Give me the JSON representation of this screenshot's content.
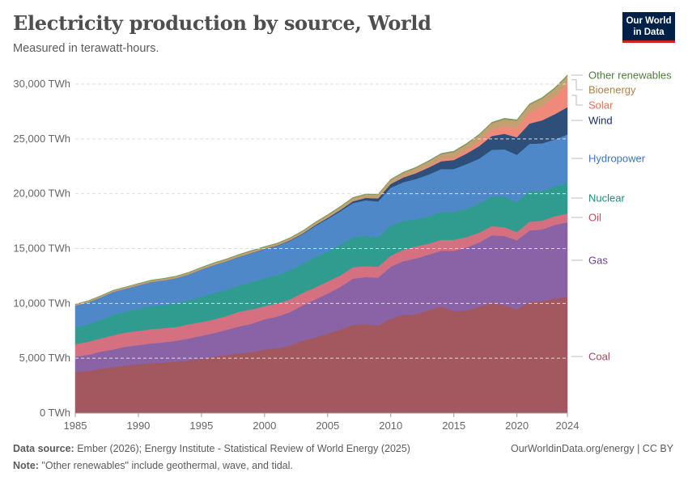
{
  "title": "Electricity production by source, World",
  "subtitle": "Measured in terawatt-hours.",
  "logo": {
    "line1": "Our World",
    "line2": "in Data"
  },
  "footer": {
    "source_label": "Data source:",
    "source": "Ember (2026); Energy Institute - Statistical Review of World Energy (2025)",
    "note_label": "Note:",
    "note": "\"Other renewables\" include geothermal, wave, and tidal.",
    "url": "OurWorldinData.org/energy | CC BY"
  },
  "chart_data": {
    "type": "area",
    "stacked": true,
    "title": "Electricity production by source, World",
    "ylabel": "",
    "xlabel": "",
    "xlim": [
      1985,
      2024
    ],
    "ylim": [
      0,
      30000
    ],
    "grid": "horizontal dashed",
    "legend": "right, inline labels",
    "x_ticks": [
      1985,
      1990,
      1995,
      2000,
      2005,
      2010,
      2015,
      2020,
      2024
    ],
    "y_ticks": [
      {
        "value": 0,
        "label": "0 TWh"
      },
      {
        "value": 5000,
        "label": "5,000 TWh"
      },
      {
        "value": 10000,
        "label": "10,000 TWh"
      },
      {
        "value": 15000,
        "label": "15,000 TWh"
      },
      {
        "value": 20000,
        "label": "20,000 TWh"
      },
      {
        "value": 25000,
        "label": "25,000 TWh"
      },
      {
        "value": 30000,
        "label": "30,000 TWh"
      }
    ],
    "years": [
      1985,
      1986,
      1987,
      1988,
      1989,
      1990,
      1991,
      1992,
      1993,
      1994,
      1995,
      1996,
      1997,
      1998,
      1999,
      2000,
      2001,
      2002,
      2003,
      2004,
      2005,
      2006,
      2007,
      2008,
      2009,
      2010,
      2011,
      2012,
      2013,
      2014,
      2015,
      2016,
      2017,
      2018,
      2019,
      2020,
      2021,
      2022,
      2023,
      2024
    ],
    "series": [
      {
        "name": "Coal",
        "color": "#a2585e",
        "label_color": "#a2485a",
        "values": [
          3750,
          3850,
          4050,
          4200,
          4350,
          4450,
          4550,
          4600,
          4700,
          4800,
          4950,
          5150,
          5300,
          5450,
          5550,
          5800,
          5900,
          6150,
          6600,
          6900,
          7250,
          7600,
          8050,
          8100,
          8000,
          8600,
          8950,
          9000,
          9400,
          9700,
          9300,
          9350,
          9700,
          10050,
          9850,
          9450,
          10150,
          10200,
          10450,
          10600
        ]
      },
      {
        "name": "Gas",
        "color": "#8963a6",
        "label_color": "#6f3d8e",
        "values": [
          1400,
          1450,
          1550,
          1600,
          1700,
          1750,
          1800,
          1850,
          1900,
          2000,
          2100,
          2150,
          2300,
          2450,
          2600,
          2750,
          2900,
          3050,
          3200,
          3450,
          3650,
          3900,
          4200,
          4300,
          4350,
          4750,
          4900,
          5100,
          5050,
          5100,
          5500,
          5750,
          5850,
          6150,
          6300,
          6300,
          6500,
          6550,
          6700,
          6800
        ]
      },
      {
        "name": "Oil",
        "color": "#d4707f",
        "label_color": "#c8475e",
        "values": [
          1150,
          1200,
          1200,
          1300,
          1300,
          1300,
          1300,
          1300,
          1250,
          1300,
          1250,
          1250,
          1250,
          1350,
          1300,
          1200,
          1200,
          1150,
          1150,
          1100,
          1100,
          1050,
          1050,
          1000,
          1000,
          1000,
          1050,
          1100,
          1000,
          1000,
          1000,
          950,
          900,
          850,
          800,
          750,
          800,
          800,
          800,
          800
        ]
      },
      {
        "name": "Nuclear",
        "color": "#2f9c8f",
        "label_color": "#1d8a80",
        "values": [
          1500,
          1600,
          1700,
          1850,
          1900,
          2000,
          2100,
          2100,
          2150,
          2200,
          2300,
          2400,
          2400,
          2400,
          2500,
          2550,
          2600,
          2650,
          2650,
          2750,
          2750,
          2800,
          2750,
          2750,
          2700,
          2750,
          2650,
          2450,
          2500,
          2550,
          2550,
          2600,
          2650,
          2700,
          2800,
          2700,
          2800,
          2700,
          2750,
          2750
        ]
      },
      {
        "name": "Hydropower",
        "color": "#4e88c8",
        "label_color": "#3e74c0",
        "values": [
          2000,
          2000,
          2050,
          2100,
          2100,
          2150,
          2200,
          2250,
          2300,
          2350,
          2500,
          2550,
          2600,
          2600,
          2650,
          2650,
          2650,
          2700,
          2700,
          2850,
          2950,
          3050,
          3100,
          3250,
          3250,
          3450,
          3500,
          3700,
          3800,
          3900,
          3900,
          4050,
          4100,
          4250,
          4300,
          4350,
          4300,
          4350,
          4250,
          4450
        ]
      },
      {
        "name": "Wind",
        "color": "#2e4f79",
        "label_color": "#0f2c5e",
        "values": [
          0,
          0,
          0,
          0,
          0,
          4,
          4,
          5,
          6,
          7,
          8,
          9,
          12,
          16,
          21,
          31,
          38,
          52,
          64,
          85,
          104,
          133,
          171,
          221,
          276,
          345,
          437,
          524,
          642,
          713,
          830,
          960,
          1140,
          1270,
          1420,
          1600,
          1850,
          2100,
          2300,
          2500
        ]
      },
      {
        "name": "Solar",
        "color": "#ef8a7a",
        "label_color": "#e56e5a",
        "values": [
          0,
          0,
          0,
          0,
          0,
          0,
          0,
          0,
          0,
          0,
          0,
          0,
          1,
          1,
          1,
          1,
          2,
          2,
          3,
          3,
          4,
          5,
          7,
          12,
          20,
          32,
          63,
          99,
          135,
          190,
          250,
          330,
          445,
          575,
          700,
          850,
          1030,
          1290,
          1630,
          2130
        ]
      },
      {
        "name": "Bioenergy",
        "color": "#c4a071",
        "label_color": "#b37f45",
        "values": [
          100,
          105,
          110,
          115,
          120,
          130,
          130,
          135,
          140,
          145,
          150,
          155,
          160,
          165,
          170,
          150,
          160,
          175,
          190,
          210,
          230,
          250,
          270,
          290,
          310,
          330,
          350,
          380,
          420,
          450,
          480,
          520,
          550,
          580,
          620,
          660,
          680,
          690,
          700,
          700
        ]
      },
      {
        "name": "Other renewables",
        "color": "#7a9a5e",
        "label_color": "#4e7d3a",
        "values": [
          30,
          32,
          34,
          36,
          38,
          40,
          42,
          44,
          45,
          46,
          48,
          50,
          50,
          51,
          52,
          52,
          53,
          54,
          55,
          56,
          57,
          59,
          60,
          62,
          65,
          68,
          70,
          72,
          75,
          78,
          80,
          82,
          85,
          88,
          90,
          92,
          95,
          96,
          98,
          100
        ]
      }
    ]
  }
}
